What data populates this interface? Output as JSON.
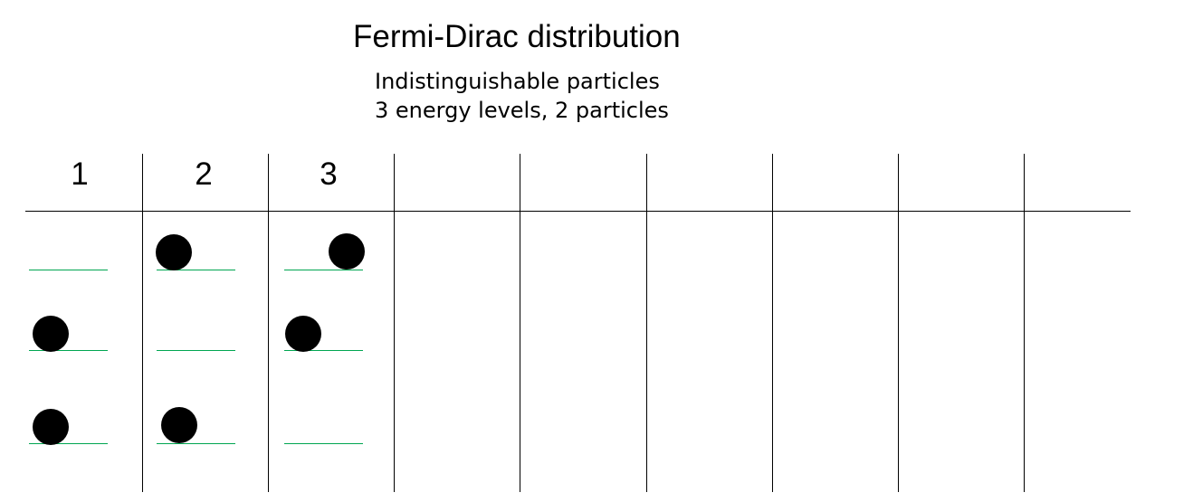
{
  "title": "Fermi-Dirac distribution",
  "subtitle_lines": [
    "Indistinguishable particles",
    "3 energy levels, 2 particles"
  ],
  "columns": [
    {
      "label": "1",
      "occupied_levels": [
        "low",
        "middle"
      ]
    },
    {
      "label": "2",
      "occupied_levels": [
        "low",
        "top"
      ]
    },
    {
      "label": "3",
      "occupied_levels": [
        "middle",
        "top"
      ]
    },
    {
      "label": ""
    },
    {
      "label": ""
    },
    {
      "label": ""
    },
    {
      "label": ""
    },
    {
      "label": ""
    },
    {
      "label": ""
    }
  ],
  "colors": {
    "energy_level_line": "#00a651",
    "particle": "#000000",
    "grid": "#000000"
  }
}
